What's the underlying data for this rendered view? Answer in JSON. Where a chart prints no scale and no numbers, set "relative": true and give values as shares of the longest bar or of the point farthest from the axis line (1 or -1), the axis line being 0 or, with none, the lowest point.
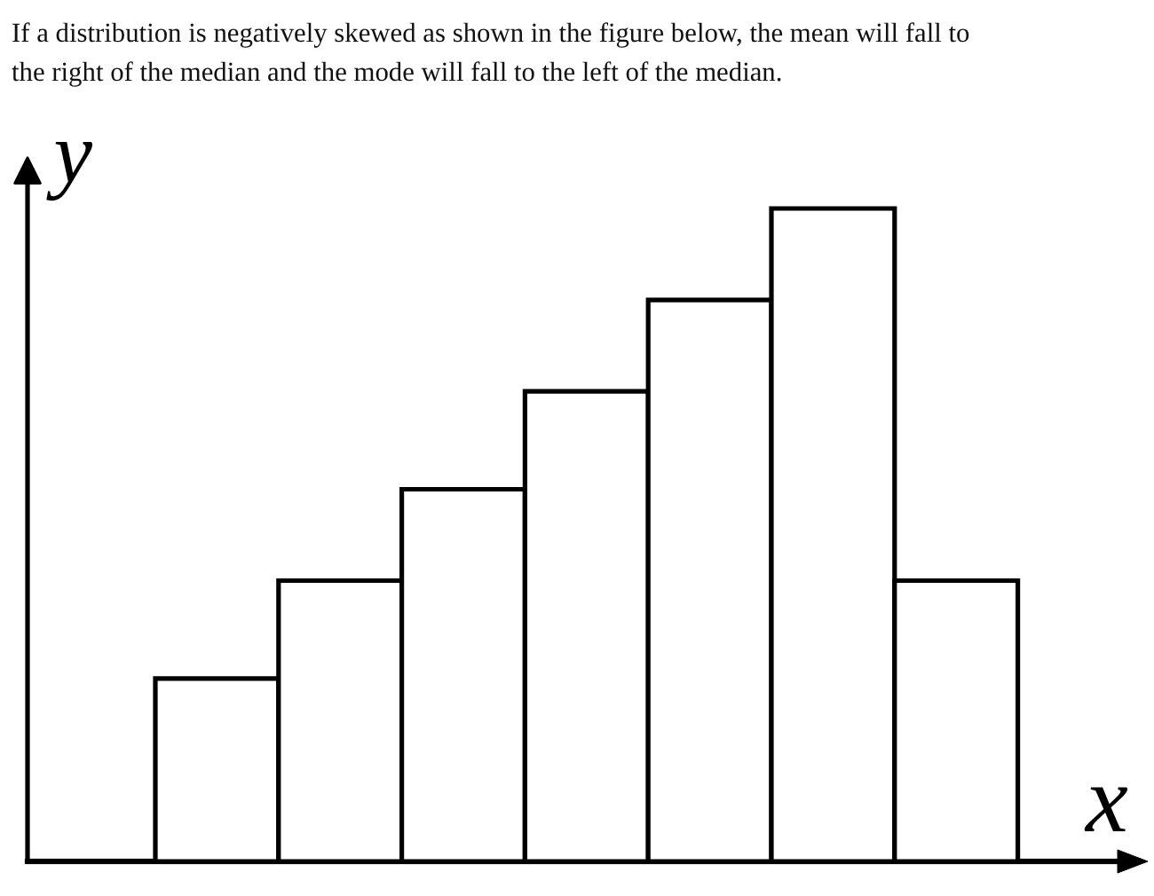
{
  "chart_data": {
    "type": "bar",
    "title": "If a distribution is negatively skewed as shown in the figure below, the mean will fall to the right of the median and the mode will fall to the left of the median.",
    "xlabel": "x",
    "ylabel": "y",
    "categories": [
      null,
      null,
      null,
      null,
      null,
      null,
      null
    ],
    "values": [
      0.28,
      0.43,
      0.57,
      0.72,
      0.86,
      1,
      0.43
    ],
    "relative": true,
    "color": "#ffffff",
    "grid": false,
    "tick_labels": false
  }
}
